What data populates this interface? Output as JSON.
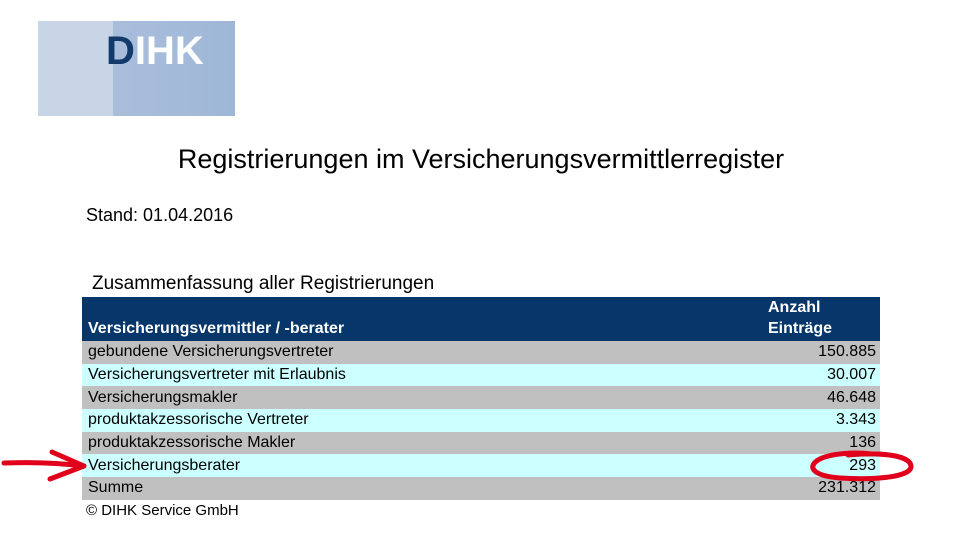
{
  "logo": {
    "text_d": "D",
    "text_rest": "IHK"
  },
  "title": "Registrierungen im Versicherungsvermittlerregister",
  "stand": "Stand: 01.04.2016",
  "section_title": "Zusammenfassung aller Registrierungen",
  "table": {
    "headers": {
      "category": "Versicherungsvermittler / -berater",
      "count_line1": "Anzahl",
      "count_line2": "Einträge"
    },
    "rows": [
      {
        "label": "gebundene Versicherungsvertreter",
        "value": "150.885"
      },
      {
        "label": "Versicherungsvertreter mit Erlaubnis",
        "value": "30.007"
      },
      {
        "label": "Versicherungsmakler",
        "value": "46.648"
      },
      {
        "label": "produktakzessorische Vertreter",
        "value": "3.343"
      },
      {
        "label": "produktakzessorische Makler",
        "value": "136"
      },
      {
        "label": "Versicherungsberater",
        "value": "293"
      },
      {
        "label": "Summe",
        "value": "231.312"
      }
    ]
  },
  "copyright": "© DIHK Service GmbH",
  "colors": {
    "header_bg": "#06366a",
    "row_grey": "#c0c0c0",
    "row_cyan": "#ccffff",
    "annotation_red": "#e0001b"
  }
}
